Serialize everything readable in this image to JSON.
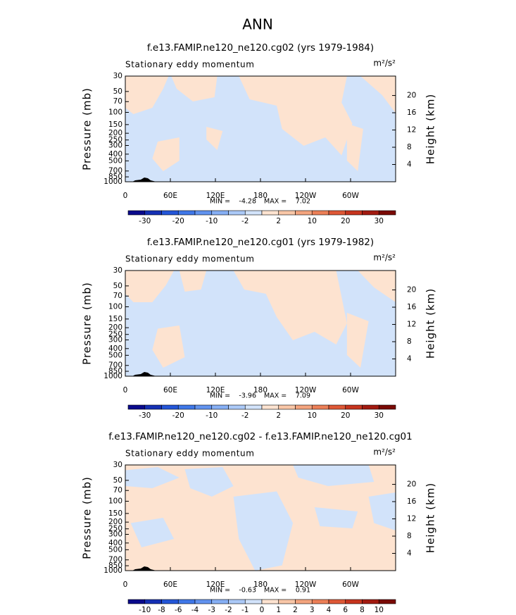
{
  "chart_data": [
    {
      "type": "contour",
      "figure_title": "ANN",
      "title": "f.e13.FAMIP.ne120_ne120.cg02 (yrs 1979-1984)",
      "subtitle": "Stationary eddy momentum",
      "units": "m²/s²",
      "ylabel": "Pressure (mb)",
      "y2label": "Height (km)",
      "ylog": true,
      "ylim": [
        1000,
        30
      ],
      "yticks": [
        30,
        50,
        70,
        100,
        150,
        200,
        250,
        300,
        400,
        500,
        700,
        850,
        1000
      ],
      "y2lim": [
        0,
        24.5
      ],
      "y2ticks": [
        4,
        8,
        12,
        16,
        20
      ],
      "xlim": [
        0,
        360
      ],
      "xticks": [
        0,
        {
          "value": 60,
          "label": "60E"
        },
        {
          "value": 120,
          "label": "120E"
        },
        180,
        {
          "value": 240,
          "label": "120W"
        },
        {
          "value": 300,
          "label": "60W"
        }
      ],
      "min_label": "MIN =",
      "min": -4.28,
      "max_label": "MAX =",
      "max": 7.02,
      "colorbar_ticks": [
        -30,
        -20,
        -10,
        -2,
        2,
        10,
        20,
        30
      ],
      "colors": [
        "#0a0a8c",
        "#1530b4",
        "#2456d8",
        "#3f77e8",
        "#6293ef",
        "#86aff4",
        "#abc9f7",
        "#d2e3fa",
        "#fde3d0",
        "#f8c6a7",
        "#f3a47e",
        "#ec7f57",
        "#de5836",
        "#c6341e",
        "#a21a10",
        "#7a0a05"
      ]
    },
    {
      "type": "contour",
      "title": "f.e13.FAMIP.ne120_ne120.cg01 (yrs 1979-1982)",
      "subtitle": "Stationary eddy momentum",
      "units": "m²/s²",
      "ylabel": "Pressure (mb)",
      "y2label": "Height (km)",
      "ylog": true,
      "ylim": [
        1000,
        30
      ],
      "yticks": [
        30,
        50,
        70,
        100,
        150,
        200,
        250,
        300,
        400,
        500,
        700,
        850,
        1000
      ],
      "y2lim": [
        0,
        24.5
      ],
      "y2ticks": [
        4,
        8,
        12,
        16,
        20
      ],
      "xlim": [
        0,
        360
      ],
      "xticks": [
        0,
        {
          "value": 60,
          "label": "60E"
        },
        {
          "value": 120,
          "label": "120E"
        },
        180,
        {
          "value": 240,
          "label": "120W"
        },
        {
          "value": 300,
          "label": "60W"
        }
      ],
      "min_label": "MIN =",
      "min": -3.96,
      "max_label": "MAX =",
      "max": 7.09,
      "colorbar_ticks": [
        -30,
        -20,
        -10,
        -2,
        2,
        10,
        20,
        30
      ],
      "colors": [
        "#0a0a8c",
        "#1530b4",
        "#2456d8",
        "#3f77e8",
        "#6293ef",
        "#86aff4",
        "#abc9f7",
        "#d2e3fa",
        "#fde3d0",
        "#f8c6a7",
        "#f3a47e",
        "#ec7f57",
        "#de5836",
        "#c6341e",
        "#a21a10",
        "#7a0a05"
      ]
    },
    {
      "type": "contour",
      "title": "f.e13.FAMIP.ne120_ne120.cg02 - f.e13.FAMIP.ne120_ne120.cg01",
      "subtitle": "Stationary eddy momentum",
      "units": "m²/s²",
      "ylabel": "Pressure (mb)",
      "y2label": "Height (km)",
      "ylog": true,
      "ylim": [
        1000,
        30
      ],
      "yticks": [
        30,
        50,
        70,
        100,
        150,
        200,
        250,
        300,
        400,
        500,
        700,
        850,
        1000
      ],
      "y2lim": [
        0,
        24.5
      ],
      "y2ticks": [
        4,
        8,
        12,
        16,
        20
      ],
      "xlim": [
        0,
        360
      ],
      "xticks": [
        0,
        {
          "value": 60,
          "label": "60E"
        },
        {
          "value": 120,
          "label": "120E"
        },
        180,
        {
          "value": 240,
          "label": "120W"
        },
        {
          "value": 300,
          "label": "60W"
        }
      ],
      "min_label": "MIN =",
      "min": -0.63,
      "max_label": "MAX =",
      "max": 0.91,
      "colorbar_ticks": [
        -10,
        -8,
        -6,
        -4,
        -3,
        -2,
        -1,
        0,
        1,
        2,
        3,
        4,
        6,
        8,
        10
      ],
      "colors": [
        "#0a0a8c",
        "#1530b4",
        "#2456d8",
        "#3f77e8",
        "#6293ef",
        "#86aff4",
        "#abc9f7",
        "#d2e3fa",
        "#fde3d0",
        "#f8c6a7",
        "#f3a47e",
        "#ec7f57",
        "#de5836",
        "#c6341e",
        "#a21a10",
        "#7a0a05"
      ]
    }
  ]
}
